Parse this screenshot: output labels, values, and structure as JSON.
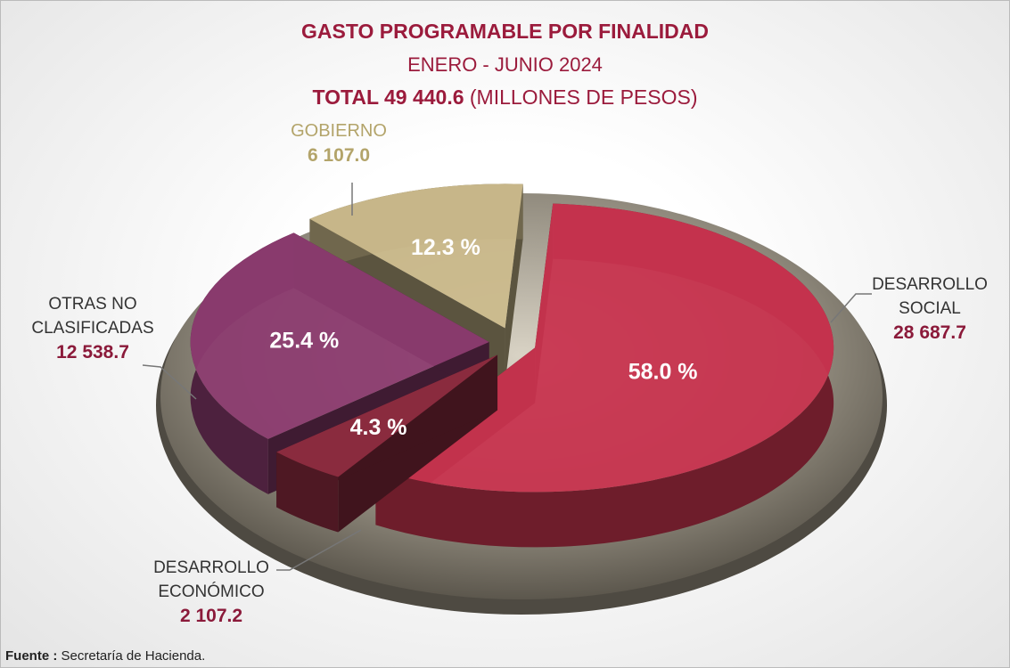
{
  "chart_data": {
    "type": "pie",
    "title": "GASTO PROGRAMABLE POR FINALIDAD",
    "subtitle": "ENERO - JUNIO 2024",
    "total_label": "TOTAL 49 440.6",
    "unit_label": "(MILLONES DE PESOS)",
    "categories": [
      "DESARROLLO SOCIAL",
      "DESARROLLO ECONÓMICO",
      "OTRAS NO CLASIFICADAS",
      "GOBIERNO"
    ],
    "values": [
      58.0,
      4.3,
      25.4,
      12.3
    ],
    "value_labels": [
      "58.0 %",
      "4.3 %",
      "25.4 %",
      "12.3 %"
    ],
    "amounts": [
      28687.7,
      2107.2,
      12538.7,
      6107.0
    ],
    "amount_labels": [
      "28 687.7",
      "2 107.2",
      "12 538.7",
      "6 107.0"
    ],
    "colors": [
      "#c8344f",
      "#8e2c40",
      "#8c3c70",
      "#cbbb8c"
    ],
    "label_colors": [
      "#8b1a3a",
      "#8b1a3a",
      "#8b1a3a",
      "#b3a46a"
    ],
    "source_label": "Fuente :",
    "source": "Secretaría de Hacienda."
  }
}
